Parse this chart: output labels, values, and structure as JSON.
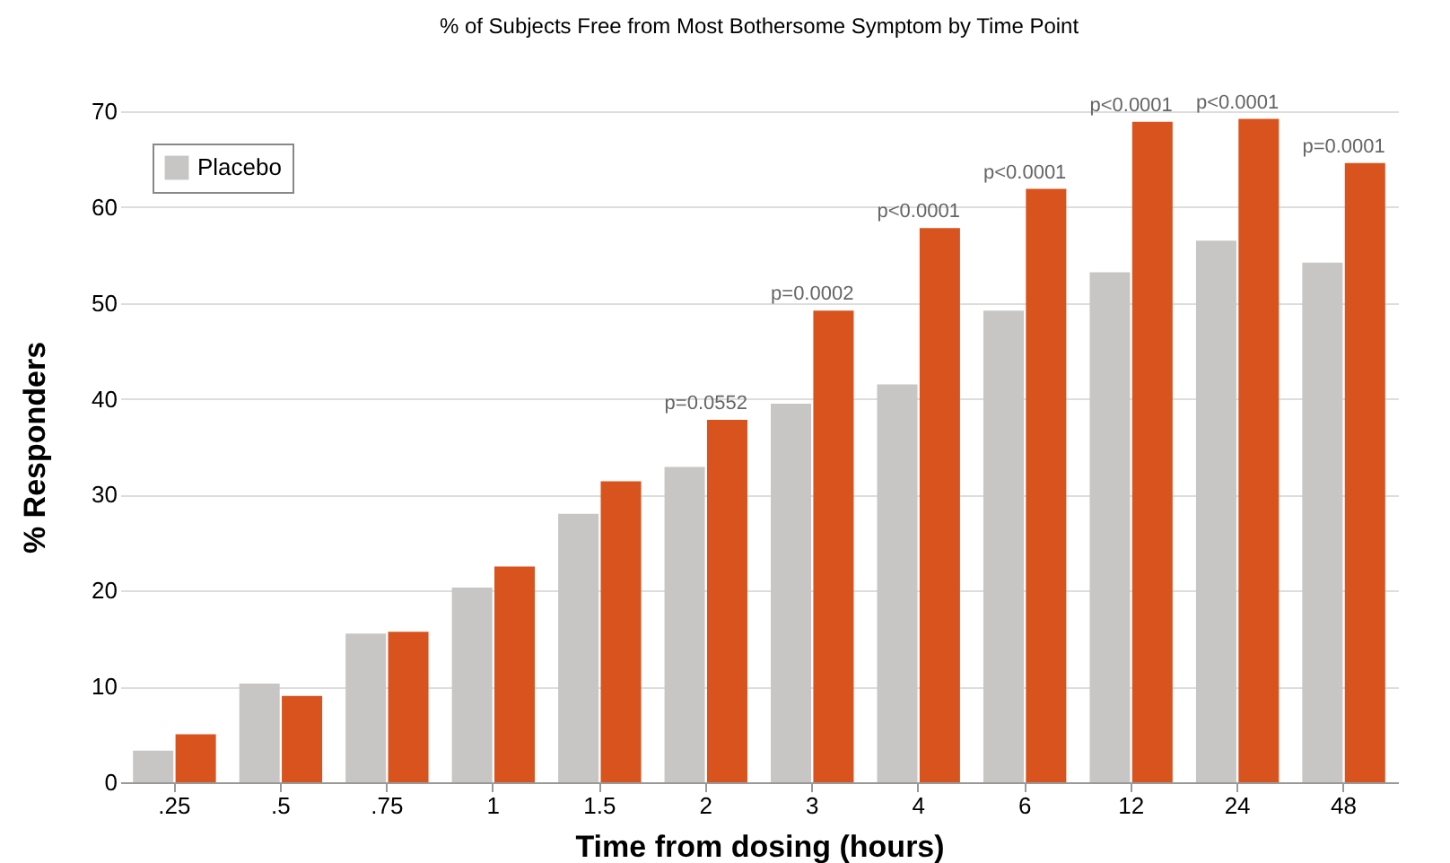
{
  "chart_data": {
    "type": "bar",
    "title": "% of Subjects Free from Most Bothersome Symptom by Time Point",
    "xlabel": "Time from dosing (hours)",
    "ylabel": "% Responders",
    "categories": [
      ".25",
      ".5",
      ".75",
      "1",
      "1.5",
      "2",
      "3",
      "4",
      "6",
      "12",
      "24",
      "48"
    ],
    "series": [
      {
        "name": "Placebo",
        "color": "#c8c6c4",
        "values": [
          3.3,
          10.3,
          15.5,
          20.3,
          28,
          32.9,
          39.5,
          41.5,
          49.2,
          53.2,
          56.5,
          54.2
        ]
      },
      {
        "color": "#d9531e",
        "values": [
          5,
          9,
          15.7,
          22.5,
          31.4,
          37.8,
          49.2,
          57.8,
          61.9,
          68.9,
          69.2,
          64.6
        ]
      }
    ],
    "ylim": [
      0,
      70
    ],
    "yticks": [
      0,
      10,
      20,
      30,
      40,
      50,
      60,
      70
    ],
    "grid": "y",
    "legend": "top left",
    "annotations": [
      {
        "text": "p=0.0552",
        "x": "2",
        "y": 37.8
      },
      {
        "text": "p=0.0002",
        "x": "3",
        "y": 49.2
      },
      {
        "text": "p<0.0001",
        "x": "4",
        "y": 57.8
      },
      {
        "text": "p<0.0001",
        "x": "6",
        "y": 61.9
      },
      {
        "text": "p<0.0001",
        "x": "12",
        "y": 68.9
      },
      {
        "text": "p<0.0001",
        "x": "24",
        "y": 69.2
      },
      {
        "text": "p=0.0001",
        "x": "48",
        "y": 64.6
      }
    ]
  }
}
